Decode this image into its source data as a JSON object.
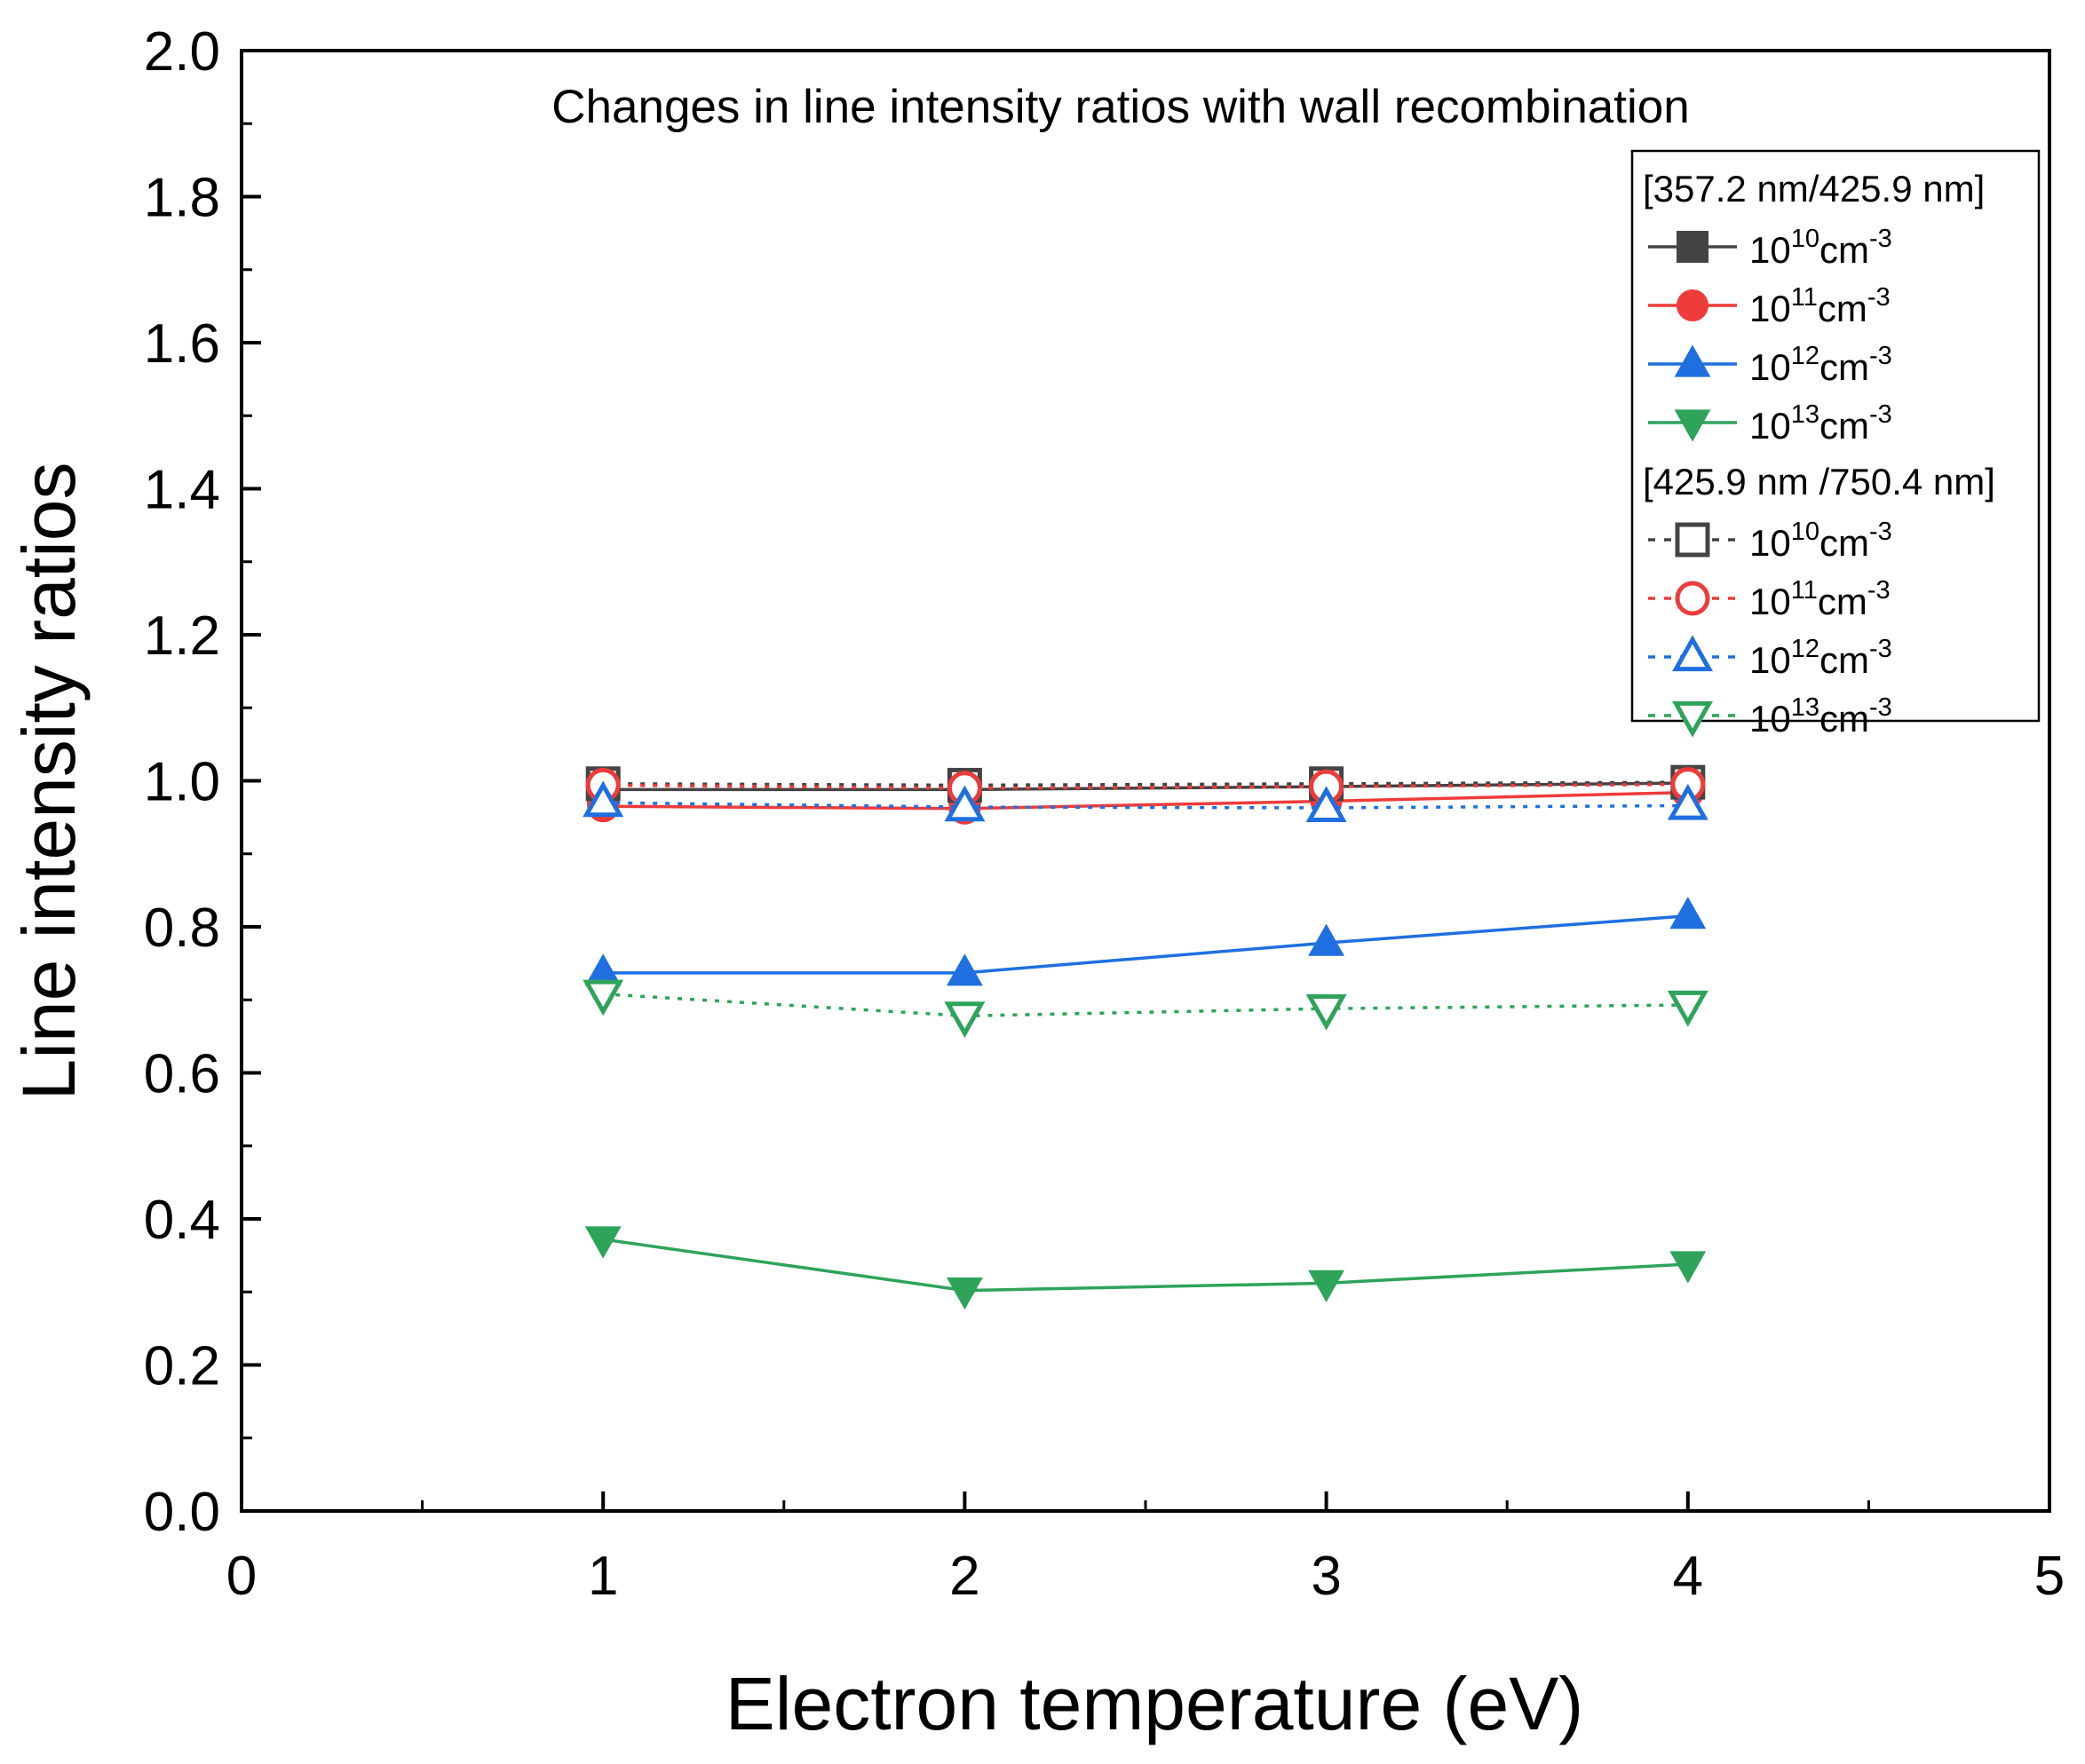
{
  "chart_data": {
    "type": "line",
    "title": "Changes in line intensity ratios with wall recombination",
    "xlabel": "Electron temperature (eV)",
    "ylabel": "Line intensity ratios",
    "xlim": [
      0,
      5
    ],
    "ylim": [
      0,
      2.0
    ],
    "xticks": [
      0,
      1,
      2,
      3,
      4,
      5
    ],
    "xtick_labels": [
      "0",
      "1",
      "2",
      "3",
      "4",
      "5"
    ],
    "yticks": [
      0.0,
      0.2,
      0.4,
      0.6,
      0.8,
      1.0,
      1.2,
      1.4,
      1.6,
      1.8,
      2.0
    ],
    "ytick_labels": [
      "0.0",
      "0.2",
      "0.4",
      "0.6",
      "0.8",
      "1.0",
      "1.2",
      "1.4",
      "1.6",
      "1.8",
      "2.0"
    ],
    "grid": false,
    "legend_position": "top-right",
    "legend_groups": [
      {
        "title": "[357.2 nm/425.9 nm]",
        "series": [
          {
            "label_base": "10",
            "label_exp": "10",
            "label_unit": "cm",
            "label_unit_exp": "-3",
            "x": [
              1,
              2,
              3,
              4
            ],
            "y": [
              0.988,
              0.988,
              0.992,
              0.997
            ],
            "color": "#444444",
            "marker": "square",
            "filled": true,
            "dash": "solid"
          },
          {
            "label_base": "10",
            "label_exp": "11",
            "label_unit": "cm",
            "label_unit_exp": "-3",
            "x": [
              1,
              2,
              3,
              4
            ],
            "y": [
              0.965,
              0.962,
              0.972,
              0.984
            ],
            "color": "#ee3b3b",
            "marker": "circle",
            "filled": true,
            "dash": "solid"
          },
          {
            "label_base": "10",
            "label_exp": "12",
            "label_unit": "cm",
            "label_unit_exp": "-3",
            "x": [
              1,
              2,
              3,
              4
            ],
            "y": [
              0.737,
              0.737,
              0.778,
              0.815
            ],
            "color": "#1f6fe0",
            "marker": "triangle-up",
            "filled": true,
            "dash": "solid"
          },
          {
            "label_base": "10",
            "label_exp": "13",
            "label_unit": "cm",
            "label_unit_exp": "-3",
            "x": [
              1,
              2,
              3,
              4
            ],
            "y": [
              0.372,
              0.302,
              0.312,
              0.338
            ],
            "color": "#2ea35a",
            "marker": "triangle-down",
            "filled": true,
            "dash": "solid"
          }
        ]
      },
      {
        "title": "[425.9 nm /750.4 nm]",
        "series": [
          {
            "label_base": "10",
            "label_exp": "10",
            "label_unit": "cm",
            "label_unit_exp": "-3",
            "x": [
              1,
              2,
              3,
              4
            ],
            "y": [
              0.996,
              0.994,
              0.996,
              0.998
            ],
            "color": "#444444",
            "marker": "square",
            "filled": false,
            "dash": "dotted"
          },
          {
            "label_base": "10",
            "label_exp": "11",
            "label_unit": "cm",
            "label_unit_exp": "-3",
            "x": [
              1,
              2,
              3,
              4
            ],
            "y": [
              0.994,
              0.99,
              0.992,
              0.995
            ],
            "color": "#ee3b3b",
            "marker": "circle",
            "filled": false,
            "dash": "dotted"
          },
          {
            "label_base": "10",
            "label_exp": "12",
            "label_unit": "cm",
            "label_unit_exp": "-3",
            "x": [
              1,
              2,
              3,
              4
            ],
            "y": [
              0.97,
              0.964,
              0.963,
              0.966
            ],
            "color": "#1f6fe0",
            "marker": "triangle-up",
            "filled": false,
            "dash": "dotted"
          },
          {
            "label_base": "10",
            "label_exp": "13",
            "label_unit": "cm",
            "label_unit_exp": "-3",
            "x": [
              1,
              2,
              3,
              4
            ],
            "y": [
              0.708,
              0.678,
              0.688,
              0.693
            ],
            "color": "#2ea35a",
            "marker": "triangle-down",
            "filled": false,
            "dash": "dotted"
          }
        ]
      }
    ]
  }
}
